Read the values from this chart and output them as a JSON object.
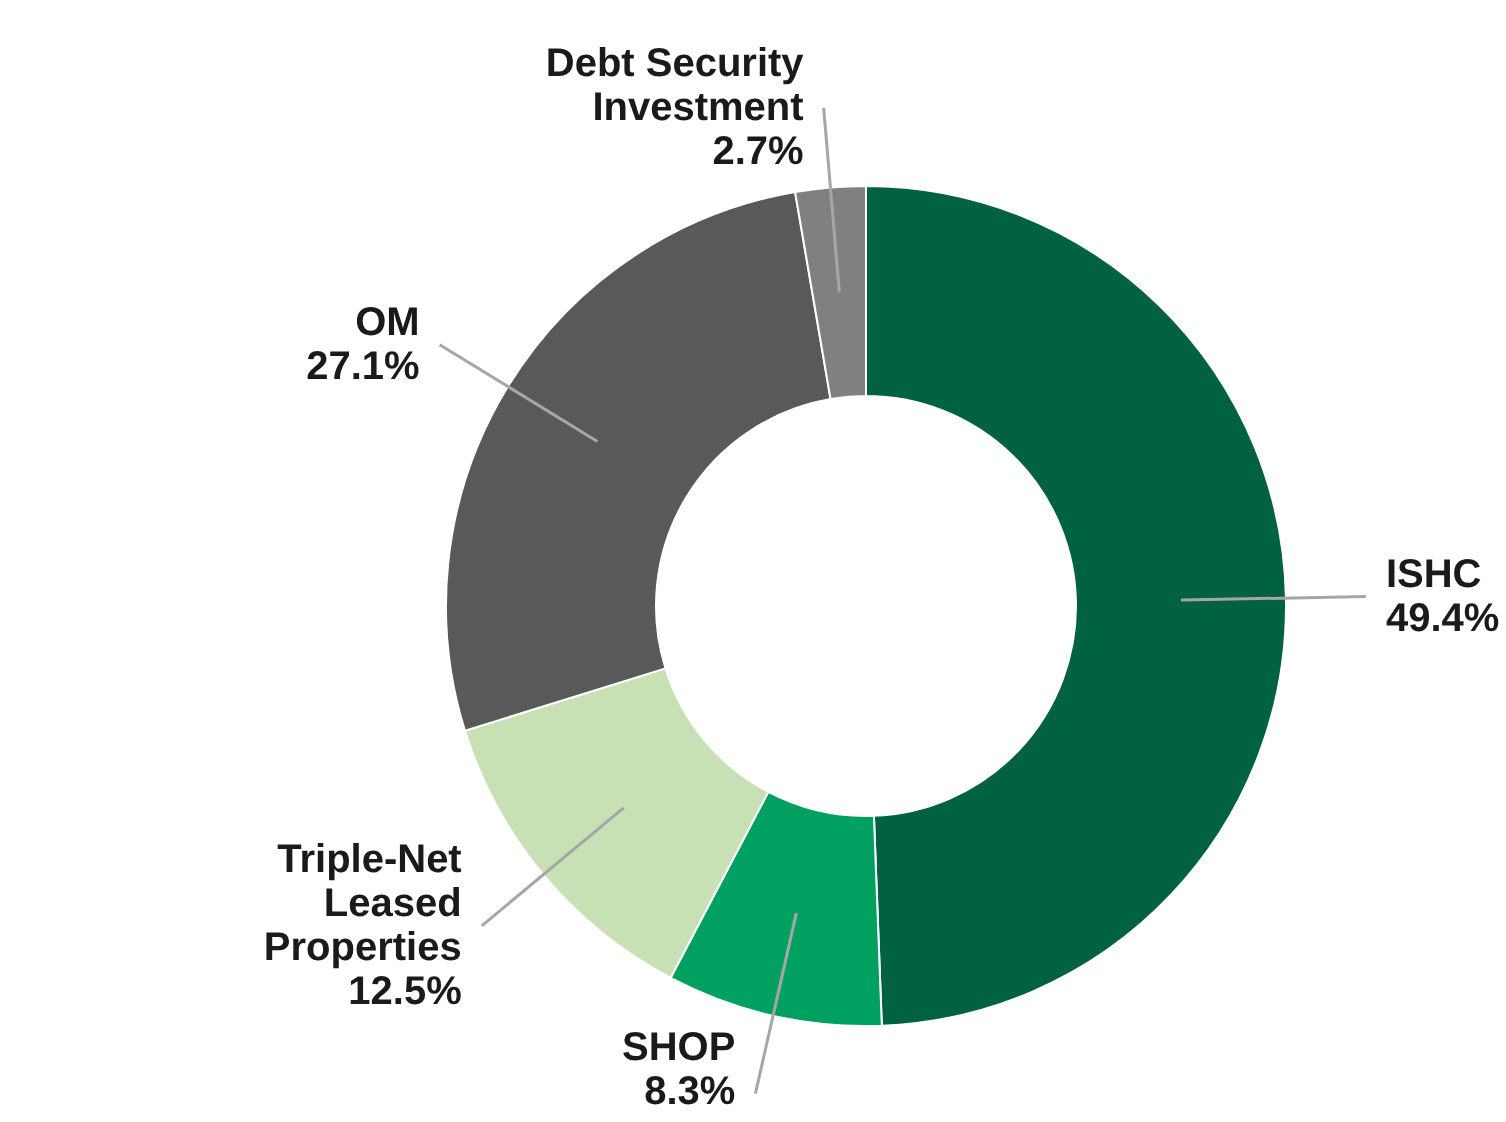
{
  "chart_data": {
    "type": "donut",
    "categories": [
      "ISHC",
      "SHOP",
      "Triple-Net Leased Properties",
      "OM",
      "Debt Security Investment"
    ],
    "values": [
      49.4,
      8.3,
      12.5,
      27.1,
      2.7
    ],
    "colors": [
      "#006241",
      "#00a060",
      "#c7e0b4",
      "#595959",
      "#808080"
    ],
    "value_labels": [
      "49.4%",
      "8.3%",
      "12.5%",
      "27.1%",
      "2.7%"
    ]
  }
}
